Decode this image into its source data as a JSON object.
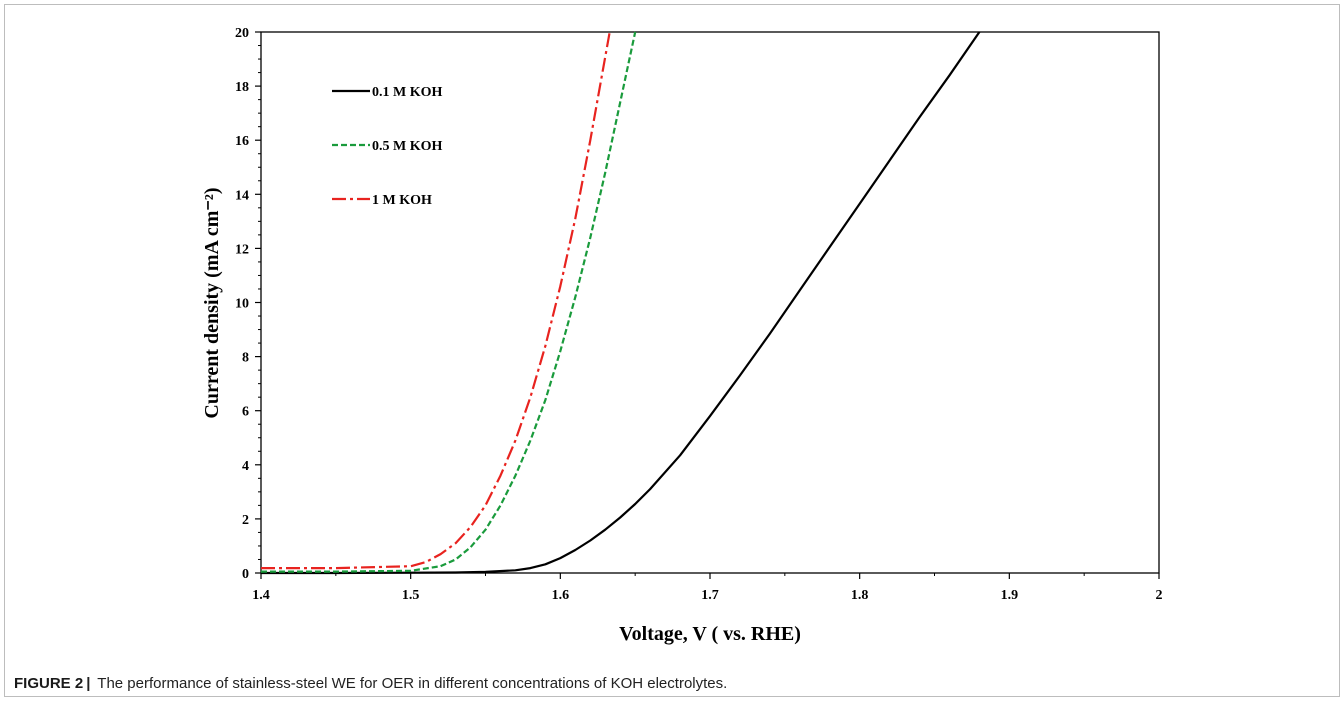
{
  "caption": {
    "label": "FIGURE 2",
    "separator": "|",
    "text": "The performance of stainless-steel WE for OER in different concentrations of KOH electrolytes."
  },
  "chart_data": {
    "type": "line",
    "xlabel": "Voltage, V ( vs. RHE)",
    "ylabel": "Current density (mA cm⁻²)",
    "xlim": [
      1.4,
      2.0
    ],
    "ylim": [
      0,
      20
    ],
    "x_ticks": [
      1.4,
      1.5,
      1.6,
      1.7,
      1.8,
      1.9,
      2.0
    ],
    "x_tick_labels": [
      "1.4",
      "1.5",
      "1.6",
      "1.7",
      "1.8",
      "1.9",
      "2"
    ],
    "y_ticks": [
      0,
      2,
      4,
      6,
      8,
      10,
      12,
      14,
      16,
      18,
      20
    ],
    "y_tick_labels": [
      "0",
      "2",
      "4",
      "6",
      "8",
      "10",
      "12",
      "14",
      "16",
      "18",
      "20"
    ],
    "grid": false,
    "legend_position": "top-left",
    "series": [
      {
        "name": "0.1 M KOH",
        "color": "#000000",
        "style": "solid",
        "x": [
          1.4,
          1.45,
          1.5,
          1.53,
          1.55,
          1.57,
          1.58,
          1.59,
          1.6,
          1.61,
          1.62,
          1.63,
          1.64,
          1.65,
          1.66,
          1.68,
          1.7,
          1.72,
          1.74,
          1.76,
          1.78,
          1.8,
          1.82,
          1.84,
          1.86,
          1.88
        ],
        "y": [
          0,
          0,
          0.01,
          0.02,
          0.04,
          0.1,
          0.18,
          0.32,
          0.55,
          0.85,
          1.2,
          1.6,
          2.05,
          2.55,
          3.1,
          4.35,
          5.8,
          7.3,
          8.85,
          10.45,
          12.05,
          13.65,
          15.25,
          16.85,
          18.4,
          20.0
        ]
      },
      {
        "name": "0.5 M KOH",
        "color": "#1a9b3c",
        "style": "dashed",
        "x": [
          1.4,
          1.45,
          1.5,
          1.52,
          1.53,
          1.54,
          1.55,
          1.56,
          1.57,
          1.58,
          1.59,
          1.6,
          1.61,
          1.62,
          1.63,
          1.64,
          1.65
        ],
        "y": [
          0.05,
          0.05,
          0.08,
          0.25,
          0.5,
          0.95,
          1.6,
          2.5,
          3.6,
          4.9,
          6.4,
          8.2,
          10.2,
          12.4,
          14.8,
          17.4,
          20.0
        ]
      },
      {
        "name": "1 M KOH",
        "color": "#e8231f",
        "style": "dash-dot",
        "x": [
          1.4,
          1.45,
          1.5,
          1.51,
          1.52,
          1.53,
          1.54,
          1.55,
          1.56,
          1.57,
          1.58,
          1.59,
          1.6,
          1.61,
          1.62,
          1.633
        ],
        "y": [
          0.18,
          0.18,
          0.25,
          0.4,
          0.7,
          1.1,
          1.7,
          2.5,
          3.6,
          4.9,
          6.5,
          8.4,
          10.6,
          13.1,
          16.0,
          20.0
        ]
      }
    ]
  }
}
